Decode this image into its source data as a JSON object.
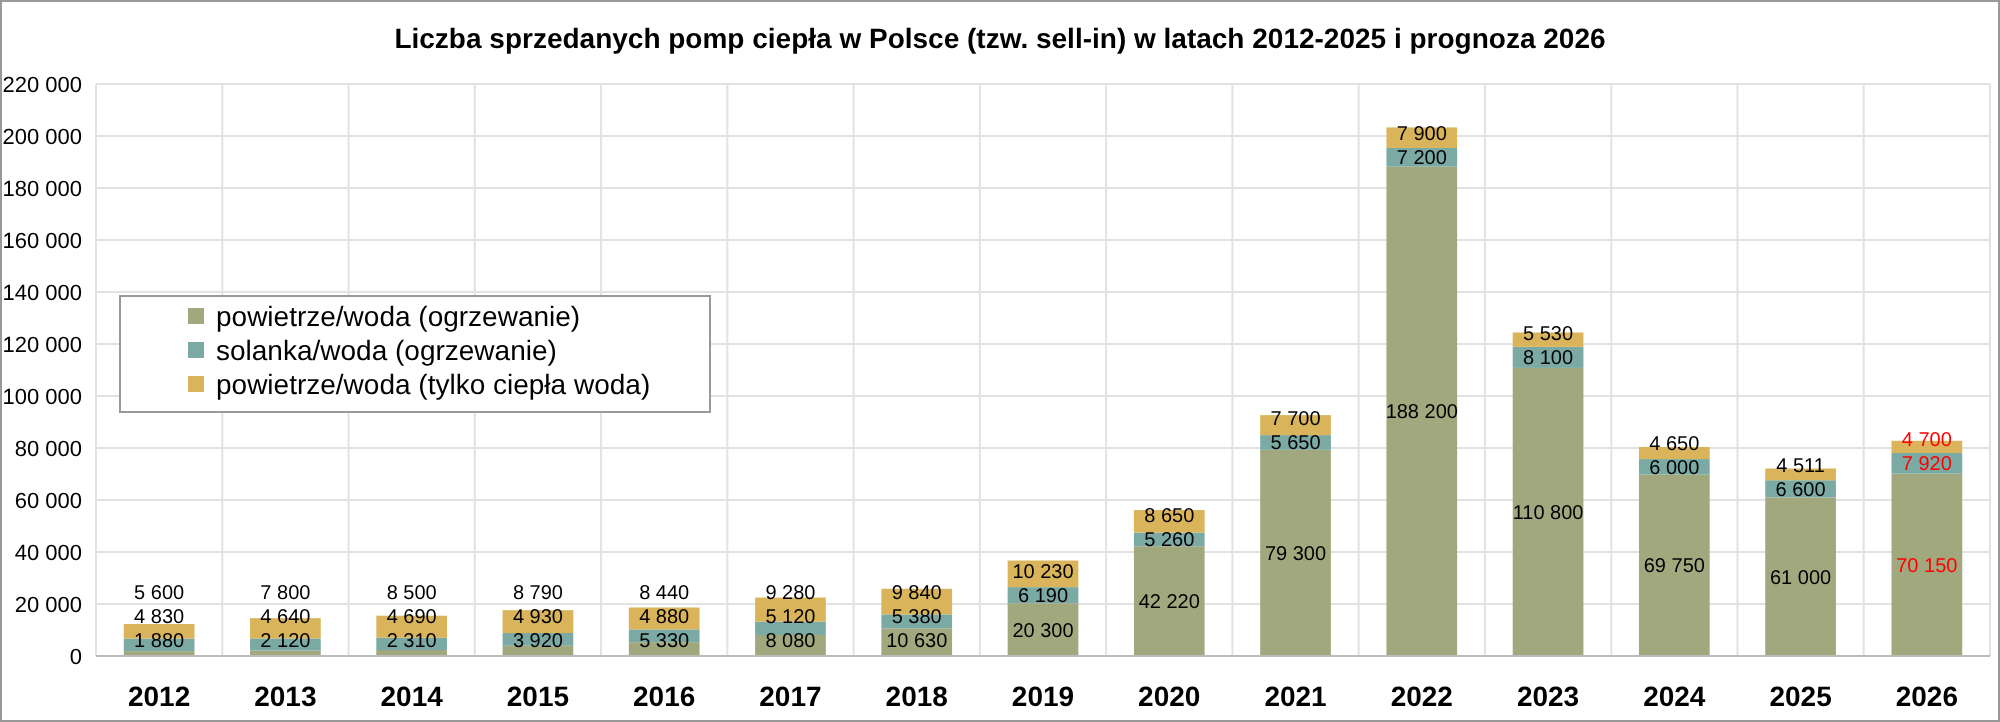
{
  "chart_data": {
    "type": "bar",
    "title": "Liczba sprzedanych pomp ciepła w Polsce (tzw. sell-in) w latach 2012-2025 i prognoza 2026",
    "stacked": true,
    "categories": [
      "2012",
      "2013",
      "2014",
      "2015",
      "2016",
      "2017",
      "2018",
      "2019",
      "2020",
      "2021",
      "2022",
      "2023",
      "2024",
      "2025",
      "2026"
    ],
    "series": [
      {
        "name": "powietrze/woda (ogrzewanie)",
        "color": "#a2a87e",
        "values": [
          1880,
          2120,
          2310,
          3920,
          5330,
          8080,
          10630,
          20300,
          42220,
          79300,
          188200,
          110800,
          69750,
          61000,
          70150
        ],
        "value_labels": [
          "1 880",
          "2 120",
          "2 310",
          "3 920",
          "5 330",
          "8 080",
          "10 630",
          "20 300",
          "42 220",
          "79 300",
          "188 200",
          "110 800",
          "69 750",
          "61 000",
          "70 150"
        ]
      },
      {
        "name": "solanka/woda (ogrzewanie)",
        "color": "#7aaaa3",
        "values": [
          4830,
          4640,
          4690,
          4930,
          4880,
          5120,
          5380,
          6190,
          5260,
          5650,
          7200,
          8100,
          6000,
          6600,
          7920
        ],
        "value_labels": [
          "4 830",
          "4 640",
          "4 690",
          "4 930",
          "4 880",
          "5 120",
          "5 380",
          "6 190",
          "5 260",
          "5 650",
          "7 200",
          "8 100",
          "6 000",
          "6 600",
          "7 920"
        ]
      },
      {
        "name": "powietrze/woda (tylko ciepła woda)",
        "color": "#d9b45a",
        "values": [
          5600,
          7800,
          8500,
          8790,
          8440,
          9280,
          9840,
          10230,
          8650,
          7700,
          7900,
          5530,
          4650,
          4511,
          4700
        ],
        "value_labels": [
          "5 600",
          "7 800",
          "8 500",
          "8 790",
          "8 440",
          "9 280",
          "9 840",
          "10 230",
          "8 650",
          "7 700",
          "7 900",
          "5 530",
          "4 650",
          "4 511",
          "4 700"
        ]
      }
    ],
    "ylim": [
      0,
      220000
    ],
    "yticks": [
      {
        "value": 0,
        "label": "0"
      },
      {
        "value": 20000,
        "label": "20 000"
      },
      {
        "value": 40000,
        "label": "40 000"
      },
      {
        "value": 60000,
        "label": "60 000"
      },
      {
        "value": 80000,
        "label": "80 000"
      },
      {
        "value": 100000,
        "label": "100 000"
      },
      {
        "value": 120000,
        "label": "120 000"
      },
      {
        "value": 140000,
        "label": "140 000"
      },
      {
        "value": 160000,
        "label": "160 000"
      },
      {
        "value": 180000,
        "label": "180 000"
      },
      {
        "value": 200000,
        "label": "200 000"
      },
      {
        "value": 220000,
        "label": "220 000"
      }
    ],
    "grid": true,
    "legend": "left"
  }
}
